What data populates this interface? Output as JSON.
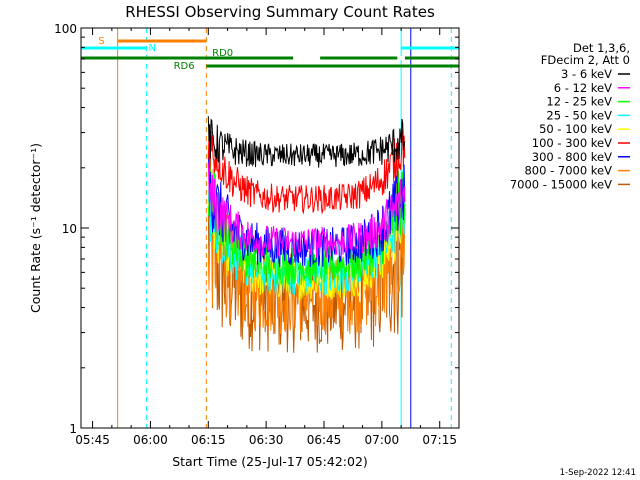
{
  "chart_data": {
    "type": "line",
    "title": "RHESSI Observing Summary Count Rates",
    "xlabel": "Start Time (25-Jul-17 05:42:02)",
    "ylabel": "Count Rate (s⁻¹ detector⁻¹)",
    "x_ticks": [
      "05:45",
      "06:00",
      "06:15",
      "06:30",
      "06:45",
      "07:00",
      "07:15"
    ],
    "x_tick_minutes": [
      3,
      18,
      33,
      48,
      63,
      78,
      93
    ],
    "x_range_minutes": [
      0,
      98
    ],
    "y_scale": "log",
    "y_ticks": [
      "1",
      "10",
      "100"
    ],
    "y_tick_values": [
      1,
      10,
      100
    ],
    "ylim": [
      1,
      100
    ],
    "legend_header": [
      "Det 1,3,6,",
      "FDecim 2, Att 0"
    ],
    "series": [
      {
        "name": "3 - 6 keV",
        "color": "#000000",
        "base": 23,
        "edge": 28,
        "noise": 0.06
      },
      {
        "name": "6 - 12 keV",
        "color": "#ff00ff",
        "base": 8.5,
        "edge": 15,
        "noise": 0.08
      },
      {
        "name": "12 - 25 keV",
        "color": "#00ff00",
        "base": 6.5,
        "edge": 16,
        "noise": 0.1
      },
      {
        "name": "25 - 50 keV",
        "color": "#00ffff",
        "base": 5.8,
        "edge": 14,
        "noise": 0.1
      },
      {
        "name": "50 - 100 keV",
        "color": "#ffff00",
        "base": 5.5,
        "edge": 13,
        "noise": 0.1
      },
      {
        "name": "100 - 300 keV",
        "color": "#ff0000",
        "base": 14,
        "edge": 28,
        "noise": 0.07
      },
      {
        "name": "300 - 800 keV",
        "color": "#0000ff",
        "base": 8,
        "edge": 16,
        "noise": 0.1
      },
      {
        "name": "800 - 7000 keV",
        "color": "#ff8000",
        "base": 4.6,
        "edge": 10,
        "noise": 0.2
      },
      {
        "name": "7000 - 15000 keV",
        "color": "#c05800",
        "base": 4.2,
        "edge": 9,
        "noise": 0.25
      }
    ],
    "data_interval_minutes": [
      33,
      84
    ],
    "bands": [
      {
        "label": "S",
        "color": "#ff8000",
        "start_min": 9.5,
        "end_min": 32.5,
        "level": "upper"
      },
      {
        "label": "N",
        "color": "#00ffff",
        "start_min": 0,
        "end_min": 17,
        "level": "upper2"
      },
      {
        "label": "N",
        "color": "#00ffff",
        "start_min": 83,
        "end_min": 98,
        "level": "upper2"
      },
      {
        "label": "RD0",
        "color": "#008000",
        "start_min": 0,
        "end_min": 98,
        "level": "mid"
      },
      {
        "label": "RD6",
        "color": "#008000",
        "start_min": 32.5,
        "end_min": 98,
        "level": "lower"
      }
    ],
    "vertical_markers": [
      {
        "minute": 9.5,
        "color": "#ff8000",
        "style": "solid"
      },
      {
        "minute": 17,
        "color": "#00ffff",
        "style": "dashed"
      },
      {
        "minute": 32.5,
        "color": "#ff8000",
        "style": "dashed"
      },
      {
        "minute": 83,
        "color": "#00ffff",
        "style": "solid"
      },
      {
        "minute": 85.5,
        "color": "#0000ff",
        "style": "solid"
      },
      {
        "minute": 96,
        "color": "#00ffff",
        "style": "dashed"
      }
    ],
    "grid": false,
    "legend_placement": "right"
  },
  "timestamp": "1-Sep-2022 12:41"
}
